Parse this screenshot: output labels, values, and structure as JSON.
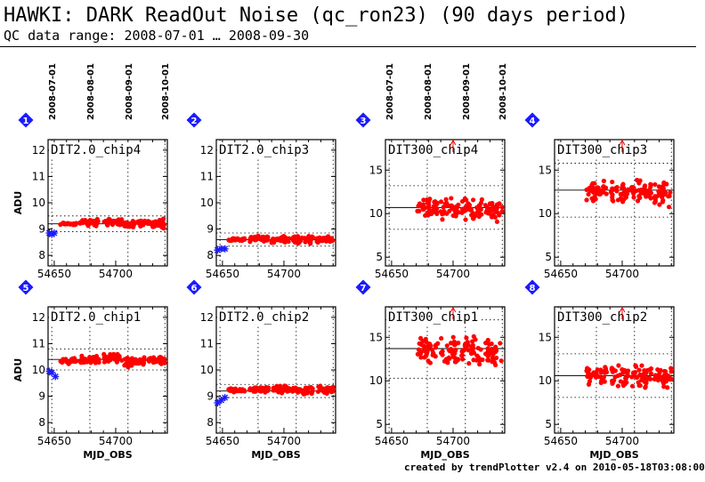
{
  "header": {
    "title": "HAWKI: DARK ReadOut Noise (qc_ron23) (90 days period)",
    "subtitle": "QC data range: 2008-07-01 … 2008-09-30"
  },
  "footer": "created by trendPlotter v2.4 on 2010-05-18T03:08:00",
  "colors": {
    "data": "#ff0000",
    "old_data": "#1a1aff",
    "badge": "#1a1aff",
    "axis": "#000000"
  },
  "chart_data": [
    {
      "type": "scatter",
      "badge": "1",
      "label": "DIT2.0_chip4",
      "ylabel": "ADU",
      "xlabel": "",
      "xlim": [
        54645,
        54742
      ],
      "ylim": [
        7.6,
        12.4
      ],
      "yticks": [
        8,
        9,
        10,
        11,
        12
      ],
      "xticks": [
        54650,
        54700
      ],
      "date_ticks": [
        "2008-07-01",
        "2008-08-01",
        "2008-09-01",
        "2008-10-01"
      ],
      "ref_line": 9.2,
      "band": [
        8.9,
        9.5
      ],
      "overflow_arrow": false,
      "old": [
        [
          54646,
          8.85
        ],
        [
          54648,
          8.8
        ],
        [
          54650,
          8.85
        ]
      ],
      "clusters": [
        [
          54655,
          54668,
          9.2,
          0.04
        ],
        [
          54671,
          54688,
          9.25,
          0.1
        ],
        [
          54690,
          54705,
          9.27,
          0.1
        ],
        [
          54707,
          54724,
          9.22,
          0.1
        ],
        [
          54726,
          54740,
          9.2,
          0.13
        ]
      ]
    },
    {
      "type": "scatter",
      "badge": "2",
      "label": "DIT2.0_chip3",
      "ylabel": "",
      "xlabel": "",
      "xlim": [
        54645,
        54742
      ],
      "ylim": [
        7.6,
        12.4
      ],
      "yticks": [
        8,
        9,
        10,
        11,
        12
      ],
      "xticks": [
        54650,
        54700
      ],
      "ref_line": 8.6,
      "band": [
        8.35,
        8.85
      ],
      "overflow_arrow": false,
      "old": [
        [
          54646,
          8.2
        ],
        [
          54649,
          8.25
        ],
        [
          54652,
          8.25
        ]
      ],
      "clusters": [
        [
          54655,
          54668,
          8.6,
          0.04
        ],
        [
          54671,
          54688,
          8.62,
          0.08
        ],
        [
          54690,
          54705,
          8.63,
          0.1
        ],
        [
          54707,
          54724,
          8.6,
          0.1
        ],
        [
          54726,
          54740,
          8.6,
          0.09
        ]
      ]
    },
    {
      "type": "scatter",
      "badge": "3",
      "label": "DIT300_chip4",
      "ylabel": "",
      "xlabel": "",
      "xlim": [
        54645,
        54742
      ],
      "ylim": [
        4,
        18.5
      ],
      "yticks": [
        5,
        10,
        15
      ],
      "xticks": [
        54650,
        54700
      ],
      "date_ticks": [
        "2008-07-01",
        "2008-08-01",
        "2008-09-01",
        "2008-10-01"
      ],
      "ref_line": 10.7,
      "band": [
        8.2,
        13.2
      ],
      "overflow_arrow": true,
      "old": [],
      "clusters": [
        [
          54671,
          54688,
          10.8,
          0.8
        ],
        [
          54690,
          54705,
          10.6,
          0.9
        ],
        [
          54707,
          54724,
          10.6,
          0.9
        ],
        [
          54726,
          54740,
          10.3,
          0.9
        ]
      ]
    },
    {
      "type": "scatter",
      "badge": "4",
      "label": "DIT300_chip3",
      "ylabel": "",
      "xlabel": "",
      "xlim": [
        54645,
        54742
      ],
      "ylim": [
        4,
        18.5
      ],
      "yticks": [
        5,
        10,
        15
      ],
      "xticks": [
        54650,
        54700
      ],
      "ref_line": 12.7,
      "band": [
        9.6,
        15.8
      ],
      "overflow_arrow": true,
      "old": [],
      "clusters": [
        [
          54671,
          54688,
          12.6,
          0.8
        ],
        [
          54690,
          54705,
          12.5,
          0.9
        ],
        [
          54707,
          54724,
          12.7,
          0.9
        ],
        [
          54726,
          54740,
          12.2,
          1.0
        ]
      ]
    },
    {
      "type": "scatter",
      "badge": "5",
      "label": "DIT2.0_chip1",
      "ylabel": "ADU",
      "xlabel": "MJD_OBS",
      "xlim": [
        54645,
        54742
      ],
      "ylim": [
        7.6,
        12.4
      ],
      "yticks": [
        8,
        9,
        10,
        11,
        12
      ],
      "xticks": [
        54650,
        54700
      ],
      "ref_line": 10.4,
      "band": [
        10.0,
        10.8
      ],
      "overflow_arrow": false,
      "old": [
        [
          54646,
          9.95
        ],
        [
          54648,
          9.9
        ],
        [
          54651,
          9.75
        ]
      ],
      "clusters": [
        [
          54655,
          54668,
          10.35,
          0.08
        ],
        [
          54671,
          54688,
          10.4,
          0.1
        ],
        [
          54690,
          54705,
          10.45,
          0.12
        ],
        [
          54707,
          54724,
          10.3,
          0.13
        ],
        [
          54726,
          54740,
          10.38,
          0.1
        ]
      ]
    },
    {
      "type": "scatter",
      "badge": "6",
      "label": "DIT2.0_chip2",
      "ylabel": "",
      "xlabel": "MJD_OBS",
      "xlim": [
        54645,
        54742
      ],
      "ylim": [
        7.6,
        12.4
      ],
      "yticks": [
        8,
        9,
        10,
        11,
        12
      ],
      "xticks": [
        54650,
        54700
      ],
      "ref_line": 9.2,
      "band": [
        8.95,
        9.45
      ],
      "overflow_arrow": false,
      "old": [
        [
          54646,
          8.75
        ],
        [
          54649,
          8.85
        ],
        [
          54652,
          8.95
        ]
      ],
      "clusters": [
        [
          54655,
          54668,
          9.22,
          0.05
        ],
        [
          54671,
          54688,
          9.25,
          0.08
        ],
        [
          54690,
          54705,
          9.25,
          0.1
        ],
        [
          54707,
          54724,
          9.2,
          0.1
        ],
        [
          54726,
          54740,
          9.25,
          0.1
        ]
      ]
    },
    {
      "type": "scatter",
      "badge": "7",
      "label": "DIT300_chip1",
      "ylabel": "",
      "xlabel": "MJD_OBS",
      "xlim": [
        54645,
        54742
      ],
      "ylim": [
        4,
        18.5
      ],
      "yticks": [
        5,
        10,
        15
      ],
      "xticks": [
        54650,
        54700
      ],
      "ref_line": 13.7,
      "band": [
        10.3,
        17.0
      ],
      "overflow_arrow": true,
      "old": [],
      "clusters": [
        [
          54671,
          54688,
          13.6,
          1.1
        ],
        [
          54690,
          54705,
          13.4,
          1.2
        ],
        [
          54707,
          54724,
          13.5,
          1.2
        ],
        [
          54726,
          54740,
          13.2,
          1.1
        ]
      ]
    },
    {
      "type": "scatter",
      "badge": "8",
      "label": "DIT300_chip2",
      "ylabel": "",
      "xlabel": "MJD_OBS",
      "xlim": [
        54645,
        54742
      ],
      "ylim": [
        4,
        18.5
      ],
      "yticks": [
        5,
        10,
        15
      ],
      "xticks": [
        54650,
        54700
      ],
      "ref_line": 10.6,
      "band": [
        8.1,
        13.1
      ],
      "overflow_arrow": true,
      "old": [],
      "clusters": [
        [
          54671,
          54688,
          10.7,
          0.8
        ],
        [
          54690,
          54705,
          10.5,
          0.9
        ],
        [
          54707,
          54724,
          10.5,
          0.9
        ],
        [
          54726,
          54740,
          10.3,
          0.9
        ]
      ]
    }
  ]
}
